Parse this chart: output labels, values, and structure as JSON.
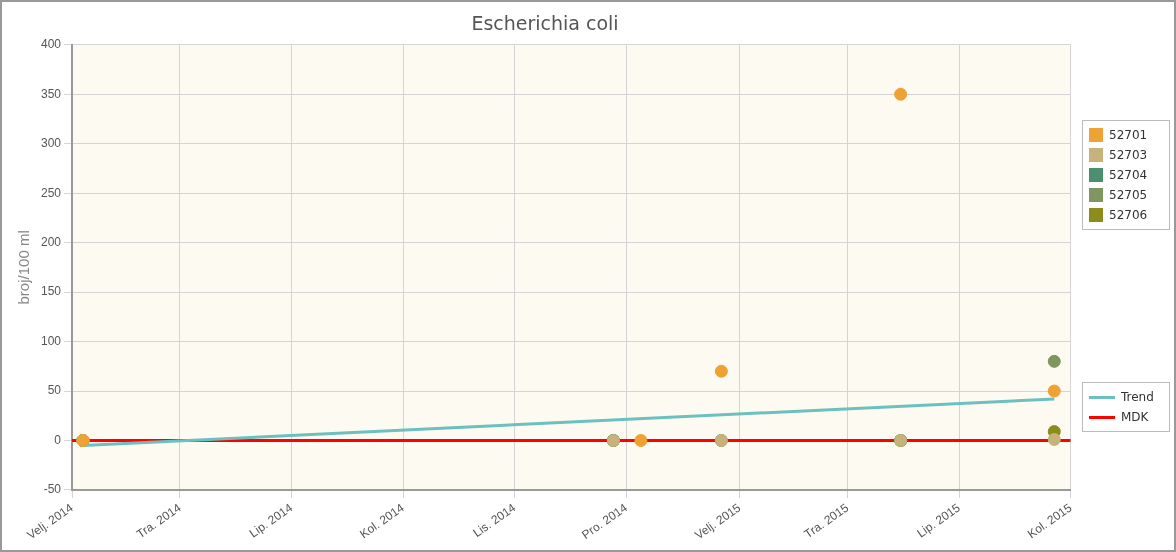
{
  "chart_data": {
    "type": "scatter",
    "title": "Escherichia coli",
    "ylabel": "broj/100 ml",
    "ylim": [
      -50,
      400
    ],
    "yticks": [
      -50,
      0,
      50,
      100,
      150,
      200,
      250,
      300,
      350,
      400
    ],
    "xlim": [
      "2014-02-01",
      "2015-08-01"
    ],
    "xticks": [
      {
        "value": "2014-02-01",
        "label": "Velj. 2014"
      },
      {
        "value": "2014-04-01",
        "label": "Tra. 2014"
      },
      {
        "value": "2014-06-01",
        "label": "Lip. 2014"
      },
      {
        "value": "2014-08-01",
        "label": "Kol. 2014"
      },
      {
        "value": "2014-10-01",
        "label": "Lis. 2014"
      },
      {
        "value": "2014-12-01",
        "label": "Pro. 2014"
      },
      {
        "value": "2015-02-01",
        "label": "Velj. 2015"
      },
      {
        "value": "2015-04-01",
        "label": "Tra. 2015"
      },
      {
        "value": "2015-06-01",
        "label": "Lip. 2015"
      },
      {
        "value": "2015-08-01",
        "label": "Kol. 2015"
      }
    ],
    "grid": true,
    "legend": "right",
    "marker": "circle",
    "series": [
      {
        "name": "52701",
        "color": "#eea236",
        "x": [
          "2014-02-07",
          "2014-12-09",
          "2015-01-22",
          "2015-04-30",
          "2015-07-23"
        ],
        "values": [
          0,
          0,
          70,
          350,
          50
        ]
      },
      {
        "name": "52703",
        "color": "#c8b27c",
        "x": [
          "2014-02-07",
          "2014-11-24",
          "2015-01-22",
          "2015-04-30",
          "2015-07-23"
        ],
        "values": [
          0,
          0,
          0,
          0,
          1
        ]
      },
      {
        "name": "52704",
        "color": "#4b8f6e",
        "x": [
          "2014-02-07",
          "2014-11-24",
          "2015-01-22",
          "2015-04-30"
        ],
        "values": [
          0,
          0,
          0,
          0
        ]
      },
      {
        "name": "52705",
        "color": "#7f9660",
        "x": [
          "2014-02-07",
          "2014-11-24",
          "2015-04-30",
          "2015-07-23"
        ],
        "values": [
          0,
          0,
          0,
          80
        ]
      },
      {
        "name": "52706",
        "color": "#8c8c1c",
        "x": [
          "2014-02-07",
          "2014-11-24",
          "2015-04-30",
          "2015-07-23"
        ],
        "values": [
          0,
          0,
          0,
          9
        ]
      },
      {
        "name": "Trend",
        "type": "line",
        "marker": "none",
        "color": "#6cc0c0",
        "x": [
          "2014-02-07",
          "2015-07-23"
        ],
        "values": [
          -5,
          42
        ]
      },
      {
        "name": "MDK",
        "type": "line",
        "marker": "none",
        "color": "#ff0000",
        "x": [
          "2014-02-01",
          "2015-08-01"
        ],
        "values": [
          0,
          0
        ]
      }
    ]
  }
}
